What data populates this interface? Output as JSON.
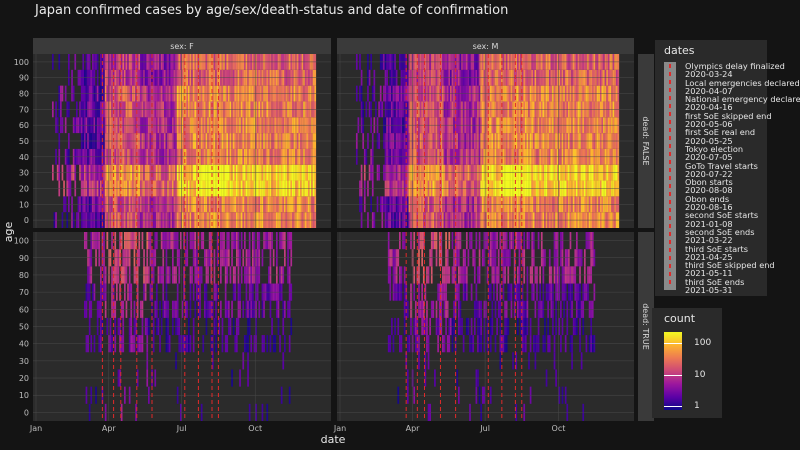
{
  "chart_data": {
    "type": "heatmap",
    "title": "Japan confirmed cases by age/sex/death-status and date of confirmation",
    "xlabel": "date",
    "ylabel": "age",
    "x_tick_labels": [
      "Jan",
      "Apr",
      "Jul",
      "Oct"
    ],
    "x_tick_months": [
      0,
      3,
      6,
      9
    ],
    "y_tick_labels": [
      "0",
      "10",
      "20",
      "30",
      "40",
      "50",
      "60",
      "70",
      "80",
      "90",
      "100"
    ],
    "ylim": [
      -5,
      105
    ],
    "facet_columns": [
      "sex: F",
      "sex: M"
    ],
    "facet_rows": [
      "dead: FALSE",
      "dead: TRUE"
    ],
    "grid": true,
    "color_scale": {
      "title": "count",
      "ticks": [
        "1",
        "10",
        "100"
      ],
      "colors": [
        "#0d0887",
        "#5c01a6",
        "#9c179e",
        "#cc4778",
        "#ed7953",
        "#fdb42f",
        "#f0f921"
      ]
    },
    "reference_lines": {
      "legend_title": "dates",
      "color": "#e02a2a",
      "style": "dashed",
      "items": [
        {
          "label": "Olympics delay finalized",
          "date": "2020-03-24"
        },
        {
          "label": "Local emergencies declared",
          "date": "2020-04-07"
        },
        {
          "label": "National emergency declared",
          "date": "2020-04-16"
        },
        {
          "label": "first SoE skipped end",
          "date": "2020-05-06"
        },
        {
          "label": "first SoE real end",
          "date": "2020-05-25"
        },
        {
          "label": "Tokyo election",
          "date": "2020-07-05"
        },
        {
          "label": "GoTo Travel starts",
          "date": "2020-07-22"
        },
        {
          "label": "Obon starts",
          "date": "2020-08-08"
        },
        {
          "label": "Obon ends",
          "date": "2020-08-16"
        },
        {
          "label": "second SoE starts",
          "date": "2021-01-08"
        },
        {
          "label": "second SoE ends",
          "date": "2021-03-22"
        },
        {
          "label": "third SoE starts",
          "date": "2021-04-25"
        },
        {
          "label": "third SoE skipped end",
          "date": "2021-05-11"
        },
        {
          "label": "third SoE ends",
          "date": "2021-05-31"
        }
      ]
    },
    "legend_entries": [
      "Olympics delay finalized",
      "2020-03-24",
      "Local emergencies declared",
      "2020-04-07",
      "National emergency declared",
      "2020-04-16",
      "first SoE skipped end",
      "2020-05-06",
      "first SoE real end",
      "2020-05-25",
      "Tokyo election",
      "2020-07-05",
      "GoTo Travel starts",
      "2020-07-22",
      "Obon starts",
      "2020-08-08",
      "Obon ends",
      "2020-08-16",
      "second SoE starts",
      "2021-01-08",
      "second SoE ends",
      "2021-03-22",
      "third SoE starts",
      "2021-04-25",
      "third SoE skipped end",
      "2021-05-11",
      "third SoE ends",
      "2021-05-31"
    ]
  }
}
